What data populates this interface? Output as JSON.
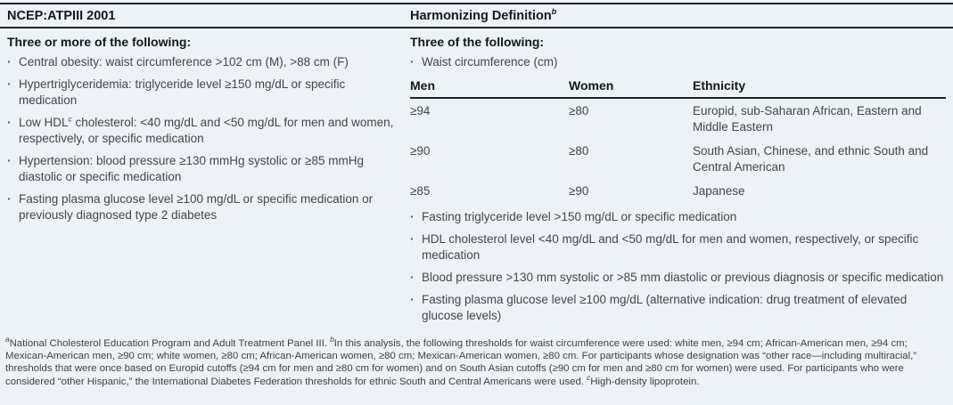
{
  "left_column": {
    "header": "NCEP:ATPIII 2001",
    "intro": "Three or more of the following:",
    "bullets": [
      "Central obesity: waist circumference >102 cm (M), >88 cm (F)",
      "Hypertriglyceridemia: triglyceride level ≥150 mg/dL or specific medication",
      {
        "pre": "Low HDL",
        "sup": "c",
        "post": " cholesterol: <40 mg/dL and <50 mg/dL for men and women, respectively, or specific medication"
      },
      "Hypertension: blood pressure ≥130 mmHg systolic or ≥85 mmHg diastolic or specific medication",
      "Fasting plasma glucose level ≥100 mg/dL or specific medication or previously diagnosed type 2 diabetes"
    ]
  },
  "right_column": {
    "header": "Harmonizing Definition",
    "header_sup": "b",
    "intro": "Three of the following:",
    "waist_bullet": "Waist circumference (cm)",
    "subtable": {
      "headers": [
        "Men",
        "Women",
        "Ethnicity"
      ],
      "rows": [
        [
          "≥94",
          "≥80",
          "Europid, sub-Saharan African, Eastern and Middle Eastern"
        ],
        [
          "≥90",
          "≥80",
          "South Asian, Chinese, and ethnic South and Central American"
        ],
        [
          "≥85",
          "≥90",
          "Japanese"
        ]
      ]
    },
    "bullets": [
      "Fasting triglyceride level >150 mg/dL or specific medication",
      "HDL cholesterol level <40 mg/dL and <50 mg/dL for men and women, respectively, or specific medication",
      "Blood pressure >130 mm systolic or >85 mm diastolic or previous diagnosis or specific medication",
      "Fasting plasma glucose level ≥100 mg/dL (alternative indication: drug treatment of elevated glucose levels)"
    ]
  },
  "bullet_glyph": "·",
  "footnotes": [
    {
      "sup": "a",
      "text": "National Cholesterol Education Program and Adult Treatment Panel III.  "
    },
    {
      "sup": "b",
      "text": "In this analysis, the following thresholds for waist circumference were used: white men, ≥94 cm; African-American men, ≥94 cm; Mexican-American men, ≥90 cm; white women, ≥80 cm; African-American women, ≥80 cm; Mexican-American women, ≥80 cm. For participants whose designation was “other race—including multiracial,” thresholds that were once based on Europid cutoffs (≥94 cm for men and ≥80 cm for women) and on South Asian cutoffs (≥90 cm for men and ≥80 cm for women) were used. For participants who were considered “other Hispanic,” the International Diabetes Federation thresholds for ethnic South and Central Americans were used.  "
    },
    {
      "sup": "c",
      "text": "High-density lipoprotein."
    }
  ],
  "colors": {
    "background": "#edf1f8",
    "rule": "#1c242c",
    "heading_text": "#12181f",
    "body_text": "#42474c"
  }
}
